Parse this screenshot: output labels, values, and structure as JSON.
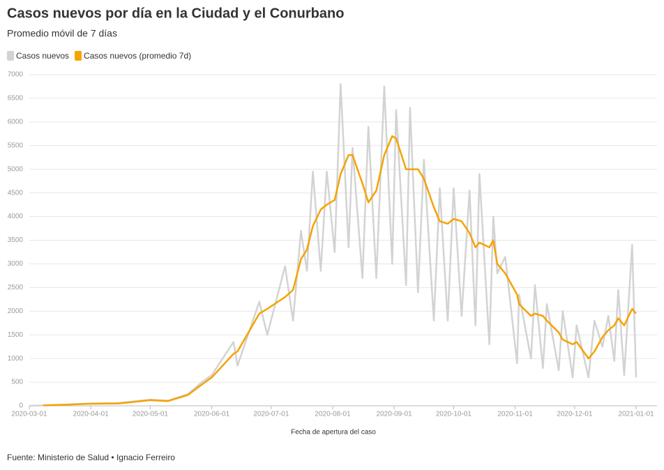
{
  "chart_data": {
    "type": "line",
    "title": "Casos nuevos por día en la Ciudad y el Conurbano",
    "subtitle": "Promedio móvil de 7 días",
    "x_label": "Fecha de apertura del caso",
    "source": "Fuente: Ministerio de Salud • Ignacio Ferreiro",
    "x": [
      "2020-03-01",
      "2020-03-08",
      "2020-03-20",
      "2020-04-01",
      "2020-04-15",
      "2020-05-01",
      "2020-05-10",
      "2020-05-20",
      "2020-05-27",
      "2020-06-01",
      "2020-06-12",
      "2020-06-14",
      "2020-06-25",
      "2020-06-29",
      "2020-07-08",
      "2020-07-12",
      "2020-07-16",
      "2020-07-19",
      "2020-07-22",
      "2020-07-26",
      "2020-07-29",
      "2020-08-02",
      "2020-08-05",
      "2020-08-09",
      "2020-08-11",
      "2020-08-16",
      "2020-08-19",
      "2020-08-23",
      "2020-08-27",
      "2020-08-31",
      "2020-09-02",
      "2020-09-07",
      "2020-09-09",
      "2020-09-13",
      "2020-09-16",
      "2020-09-21",
      "2020-09-24",
      "2020-09-28",
      "2020-10-01",
      "2020-10-05",
      "2020-10-09",
      "2020-10-12",
      "2020-10-14",
      "2020-10-19",
      "2020-10-21",
      "2020-10-23",
      "2020-10-27",
      "2020-11-02",
      "2020-11-03",
      "2020-11-09",
      "2020-11-11",
      "2020-11-15",
      "2020-11-17",
      "2020-11-23",
      "2020-11-25",
      "2020-11-30",
      "2020-12-02",
      "2020-12-08",
      "2020-12-11",
      "2020-12-15",
      "2020-12-18",
      "2020-12-21",
      "2020-12-23",
      "2020-12-26",
      "2020-12-30",
      "2021-01-01"
    ],
    "series": [
      {
        "name": "Casos nuevos",
        "color": "#d3d3d3",
        "values": [
          0,
          10,
          25,
          50,
          60,
          130,
          110,
          250,
          500,
          650,
          1350,
          850,
          2200,
          1500,
          2950,
          1800,
          3700,
          2850,
          4950,
          2850,
          4950,
          3250,
          6800,
          3350,
          5450,
          2700,
          5900,
          2700,
          6750,
          3000,
          6250,
          2550,
          6300,
          2400,
          5200,
          1800,
          4600,
          1800,
          4600,
          1900,
          4550,
          1700,
          4900,
          1300,
          4000,
          2800,
          3150,
          900,
          2350,
          1000,
          2550,
          800,
          2150,
          750,
          2000,
          600,
          1700,
          600,
          1800,
          1250,
          1900,
          950,
          2450,
          650,
          3400,
          600
        ]
      },
      {
        "name": "Casos nuevos (promedio 7d)",
        "color": "#f5a300",
        "values": [
          null,
          10,
          25,
          45,
          50,
          120,
          100,
          230,
          450,
          600,
          1100,
          1150,
          1950,
          2050,
          2300,
          2450,
          3100,
          3300,
          3800,
          4150,
          4250,
          4350,
          4900,
          5300,
          5300,
          4700,
          4300,
          4550,
          5300,
          5700,
          5650,
          5000,
          5000,
          5000,
          4800,
          4200,
          3900,
          3850,
          3950,
          3900,
          3650,
          3350,
          3450,
          3350,
          3500,
          3000,
          2800,
          2350,
          2150,
          1900,
          1950,
          1900,
          1800,
          1550,
          1400,
          1300,
          1350,
          1000,
          1150,
          1450,
          1600,
          1700,
          1850,
          1700,
          2050,
          1950
        ]
      }
    ],
    "xlim": [
      "2020-03-01",
      "2021-01-01"
    ],
    "xticks": [
      "2020-03-01",
      "2020-04-01",
      "2020-05-01",
      "2020-06-01",
      "2020-07-01",
      "2020-08-01",
      "2020-09-01",
      "2020-10-01",
      "2020-11-01",
      "2020-12-01",
      "2021-01-01"
    ],
    "ylim": [
      0,
      7000
    ],
    "yticks": [
      0,
      500,
      1000,
      1500,
      2000,
      2500,
      3000,
      3500,
      4000,
      4500,
      5000,
      5500,
      6000,
      6500,
      7000
    ],
    "grid": true,
    "legend": "top-left"
  }
}
